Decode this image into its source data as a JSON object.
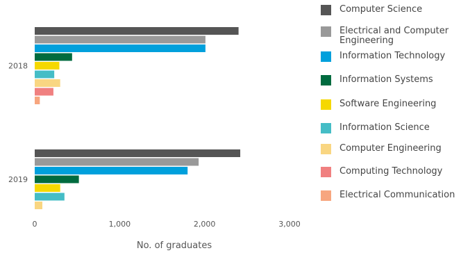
{
  "chart_data": {
    "type": "bar",
    "orientation": "horizontal",
    "categories": [
      "2018",
      "2019"
    ],
    "series": [
      {
        "name": "Computer Science",
        "color": "#555555",
        "values": [
          2400,
          2420
        ]
      },
      {
        "name": "Electrical and Computer Engineering",
        "color": "#999999",
        "values": [
          2010,
          1930
        ]
      },
      {
        "name": "Information Technology",
        "color": "#00a0dc",
        "values": [
          2010,
          1800
        ]
      },
      {
        "name": "Information Systems",
        "color": "#006b3f",
        "values": [
          440,
          520
        ]
      },
      {
        "name": "Software Engineering",
        "color": "#f5d800",
        "values": [
          290,
          300
        ]
      },
      {
        "name": "Information Science",
        "color": "#45bdc6",
        "values": [
          230,
          350
        ]
      },
      {
        "name": "Computer Engineering",
        "color": "#f9d682",
        "values": [
          300,
          90
        ]
      },
      {
        "name": "Computing Technology",
        "color": "#f08080",
        "values": [
          220,
          null
        ]
      },
      {
        "name": "Electrical Communication",
        "color": "#f7a67f",
        "values": [
          60,
          null
        ]
      }
    ],
    "xlabel": "No. of graduates",
    "ylabel": "",
    "xlim": [
      0,
      3000
    ],
    "xticks": [
      0,
      1000,
      2000,
      3000
    ],
    "xtick_labels": [
      "0",
      "1,000",
      "2,000",
      "3,000"
    ],
    "grid": false,
    "legend_position": "right"
  }
}
